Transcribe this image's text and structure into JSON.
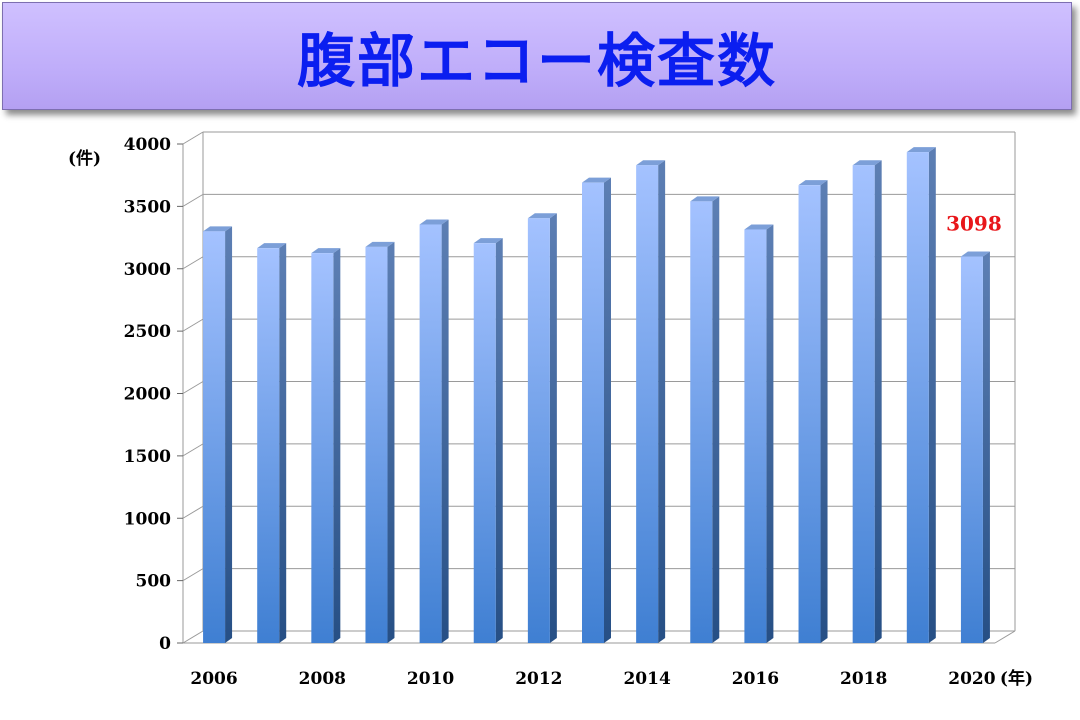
{
  "header": {
    "title": "腹部エコー検査数"
  },
  "chart_data": {
    "type": "bar",
    "title": "腹部エコー検査数",
    "y_unit": "(件)",
    "x_unit": "(年)",
    "categories": [
      "2006",
      "2007",
      "2008",
      "2009",
      "2010",
      "2011",
      "2012",
      "2013",
      "2014",
      "2015",
      "2016",
      "2017",
      "2018",
      "2019",
      "2020"
    ],
    "x_tick_labels": [
      "2006",
      "2008",
      "2010",
      "2012",
      "2014",
      "2016",
      "2018",
      "2020"
    ],
    "values": [
      3300,
      3165,
      3125,
      3175,
      3355,
      3205,
      3405,
      3690,
      3830,
      3540,
      3315,
      3670,
      3830,
      3935,
      3098
    ],
    "y_ticks": [
      "0",
      "500",
      "1000",
      "1500",
      "2000",
      "2500",
      "3000",
      "3500",
      "4000"
    ],
    "ylim": [
      0,
      4000
    ],
    "grid": true,
    "data_labels": [
      {
        "category": "2020",
        "text": "3098"
      }
    ],
    "colors": {
      "bar_top": "#a4c2ff",
      "bar_bottom": "#3f7fd2",
      "side": "#2e5a94",
      "label": "#e8161a"
    }
  }
}
